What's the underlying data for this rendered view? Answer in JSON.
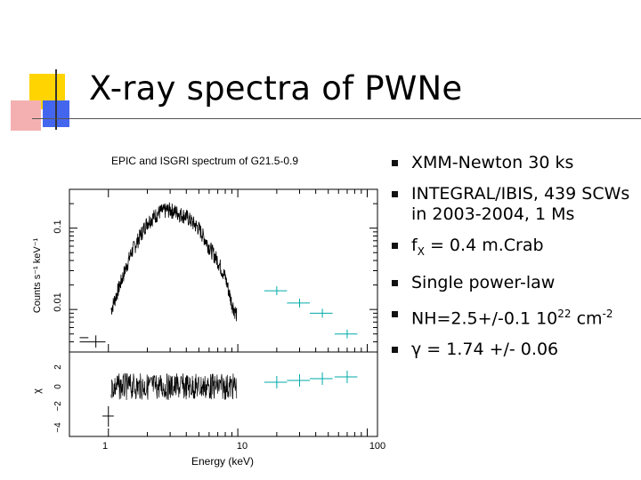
{
  "slide": {
    "title": "X-ray spectra of PWNe",
    "bullets": [
      {
        "text": "XMM-Newton 30 ks"
      },
      {
        "text": "INTEGRAL/IBIS, 439 SCWs in 2003-2004, 1 Ms"
      },
      {
        "pre": "f",
        "sub": "X",
        "post": " = 0.4 m.Crab"
      },
      {
        "text": "Single power-law"
      },
      {
        "pre": "NH=2.5+/-0.1 10",
        "sup": "22",
        "mid": " cm",
        "sup2": "-2"
      },
      {
        "pre": "γ",
        "post": " = 1.74 +/- 0.06"
      }
    ]
  },
  "chart_data": {
    "type": "scatter",
    "title": "EPIC and ISGRI spectrum of G21.5-0.9",
    "xlabel": "Energy (keV)",
    "ylabel": "Counts s⁻¹ keV⁻¹",
    "residual_ylabel": "χ",
    "x_scale": "log",
    "y_scale": "log",
    "xlim": [
      0.5,
      120
    ],
    "ylim": [
      0.003,
      0.3
    ],
    "x_tick_labels": [
      "1",
      "10",
      "100"
    ],
    "y_tick_labels": [
      "0.01",
      "0.1"
    ],
    "residual_tick_labels": [
      "2",
      "0",
      "−2",
      "−4"
    ],
    "series": [
      {
        "color": "#000000",
        "x": [
          0.6,
          1.0,
          1.5,
          2.0,
          2.5,
          3.0,
          4.0,
          5.0,
          6.0,
          7.0,
          8.0,
          9.0,
          10.0
        ],
        "y": [
          0.004,
          0.008,
          0.05,
          0.12,
          0.16,
          0.17,
          0.14,
          0.1,
          0.06,
          0.04,
          0.025,
          0.012,
          0.008
        ]
      },
      {
        "color": "#00aaaa",
        "x": [
          20,
          30,
          45,
          70
        ],
        "y": [
          0.017,
          0.012,
          0.009,
          0.005
        ]
      }
    ]
  }
}
